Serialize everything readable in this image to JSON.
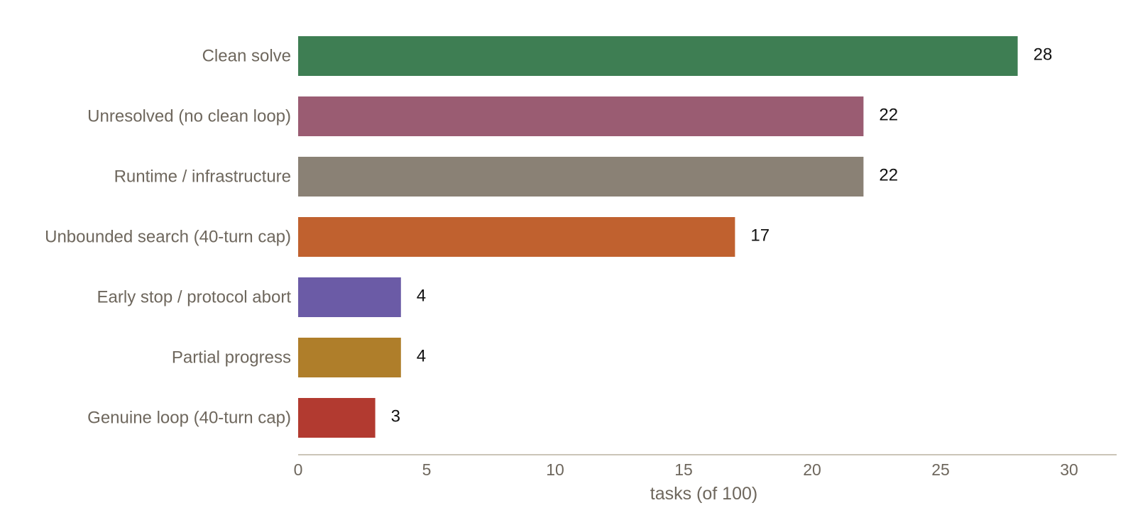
{
  "chart_data": {
    "type": "bar",
    "orientation": "horizontal",
    "categories": [
      "Clean solve",
      "Unresolved (no clean loop)",
      "Runtime / infrastructure",
      "Unbounded search (40-turn cap)",
      "Early stop / protocol abort",
      "Partial progress",
      "Genuine loop (40-turn cap)"
    ],
    "values": [
      28,
      22,
      22,
      17,
      4,
      4,
      3
    ],
    "colors": [
      "#3e7e53",
      "#9a5c72",
      "#8a8175",
      "#c0612f",
      "#6b5ba6",
      "#af7e2a",
      "#b23a30"
    ],
    "xlabel": "tasks (of 100)",
    "xlim": [
      0,
      32
    ],
    "xticks": [
      0,
      5,
      10,
      15,
      20,
      25,
      30
    ],
    "data_labels": true,
    "grid": false,
    "legend": "none"
  },
  "style": {
    "axis_color": "#cbc5b8",
    "text_color": "#6e675d",
    "value_text_color": "#111111"
  }
}
